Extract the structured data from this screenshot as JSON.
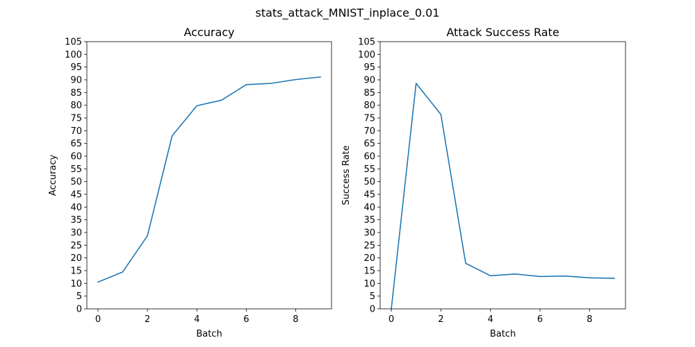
{
  "figure": {
    "suptitle": "stats_attack_MNIST_inplace_0.01"
  },
  "chart_data": [
    {
      "type": "line",
      "title": "Accuracy",
      "xlabel": "Batch",
      "ylabel": "Accuracy",
      "x": [
        0,
        1,
        2,
        3,
        4,
        5,
        6,
        7,
        8,
        9
      ],
      "series": [
        {
          "values": [
            10.5,
            14.5,
            28.7,
            68.0,
            79.8,
            82.0,
            88.1,
            88.6,
            90.1,
            91.1
          ]
        }
      ],
      "xlim": [
        -0.45,
        9.45
      ],
      "ylim": [
        0,
        105
      ],
      "xticks": [
        0,
        2,
        4,
        6,
        8
      ],
      "yticks": [
        0,
        5,
        10,
        15,
        20,
        25,
        30,
        35,
        40,
        45,
        50,
        55,
        60,
        65,
        70,
        75,
        80,
        85,
        90,
        95,
        100,
        105
      ],
      "grid": false,
      "color": "#1f77b4"
    },
    {
      "type": "line",
      "title": "Attack Success Rate",
      "xlabel": "Batch",
      "ylabel": "Success Rate",
      "x": [
        0,
        1,
        2,
        3,
        4,
        5,
        6,
        7,
        8,
        9
      ],
      "series": [
        {
          "values": [
            0.0,
            88.6,
            76.4,
            17.9,
            13.0,
            13.7,
            12.7,
            12.9,
            12.2,
            12.0
          ]
        }
      ],
      "xlim": [
        -0.45,
        9.45
      ],
      "ylim": [
        0,
        105
      ],
      "xticks": [
        0,
        2,
        4,
        6,
        8
      ],
      "yticks": [
        0,
        5,
        10,
        15,
        20,
        25,
        30,
        35,
        40,
        45,
        50,
        55,
        60,
        65,
        70,
        75,
        80,
        85,
        90,
        95,
        100,
        105
      ],
      "grid": false,
      "color": "#1f77b4"
    }
  ]
}
